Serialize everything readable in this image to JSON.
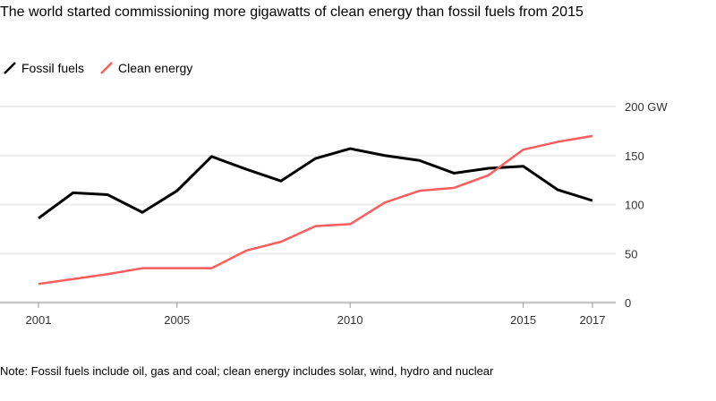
{
  "chart_data": {
    "type": "line",
    "title": "The world started commissioning more gigawatts of clean energy than fossil fuels from 2015",
    "x": [
      2001,
      2002,
      2003,
      2004,
      2005,
      2006,
      2007,
      2008,
      2009,
      2010,
      2011,
      2012,
      2013,
      2014,
      2015,
      2016,
      2017
    ],
    "x_ticks": [
      "2001",
      "2005",
      "2010",
      "2015",
      "2017"
    ],
    "y_ticks": [
      "200 GW",
      "150",
      "100",
      "50",
      "0"
    ],
    "ylim": [
      0,
      200
    ],
    "grid": true,
    "legend": "top-left",
    "series": [
      {
        "name": "Fossil fuels",
        "color": "#000000",
        "values": [
          86,
          112,
          110,
          92,
          114,
          149,
          136,
          124,
          147,
          157,
          150,
          145,
          132,
          137,
          139,
          115,
          104
        ]
      },
      {
        "name": "Clean energy",
        "color": "#ff5c5c",
        "values": [
          19,
          24,
          29,
          35,
          35,
          35,
          53,
          62,
          78,
          80,
          102,
          114,
          117,
          130,
          156,
          164,
          170
        ]
      }
    ],
    "note": "Note: Fossil fuels include oil, gas and coal; clean energy includes solar, wind, hydro and nuclear"
  }
}
